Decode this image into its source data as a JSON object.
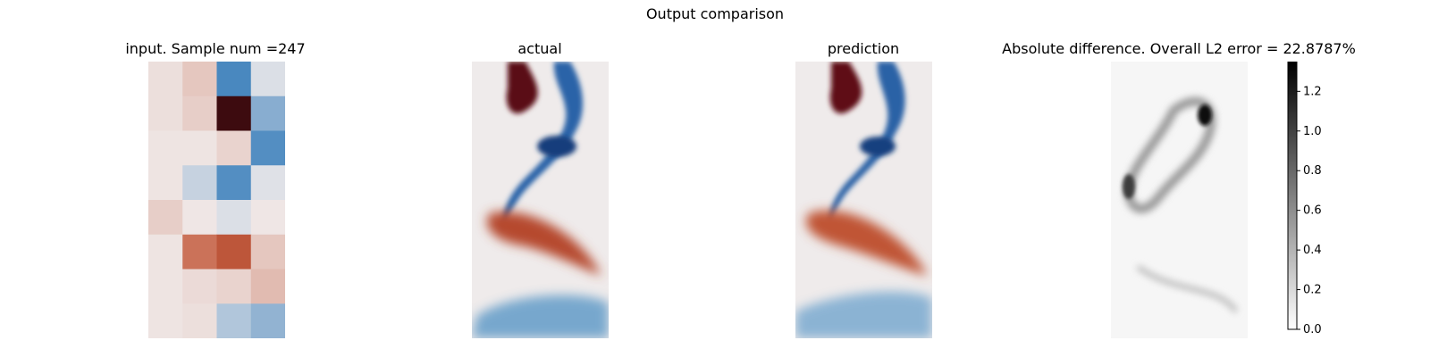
{
  "figure": {
    "suptitle": "Output comparison"
  },
  "colors": {
    "diverging_negative": "#1f6fb4",
    "diverging_mid": "#f0ebeb",
    "diverging_positive": "#3d0b0f",
    "difference_low": "#ffffff",
    "difference_high": "#000000"
  },
  "chart_data": [
    {
      "type": "heatmap",
      "title": "input. Sample num =247",
      "grid": false,
      "axes": "off",
      "colormap": "diverging red-white-blue",
      "rows": 8,
      "cols": 4,
      "values": [
        [
          0.05,
          0.15,
          -0.8,
          -0.1
        ],
        [
          0.05,
          0.12,
          1.0,
          -0.5
        ],
        [
          0.03,
          0.03,
          0.1,
          -0.75
        ],
        [
          0.03,
          -0.2,
          -0.75,
          -0.08
        ],
        [
          0.12,
          0.02,
          -0.1,
          0.02
        ],
        [
          0.03,
          0.5,
          0.62,
          0.15
        ],
        [
          0.03,
          0.07,
          0.1,
          0.2
        ],
        [
          0.03,
          0.05,
          -0.3,
          -0.45
        ]
      ]
    },
    {
      "type": "heatmap",
      "title": "actual",
      "grid": false,
      "axes": "off",
      "colormap": "diverging red-white-blue"
    },
    {
      "type": "heatmap",
      "title": "prediction",
      "grid": false,
      "axes": "off",
      "colormap": "diverging red-white-blue"
    },
    {
      "type": "heatmap",
      "title": "Absolute difference. Overall L2 error = 22.8787%",
      "grid": false,
      "axes": "off",
      "colormap": "greys",
      "colorbar": {
        "range": [
          0.0,
          1.35
        ],
        "ticks": [
          "0.0",
          "0.2",
          "0.4",
          "0.6",
          "0.8",
          "1.0",
          "1.2"
        ]
      }
    }
  ]
}
